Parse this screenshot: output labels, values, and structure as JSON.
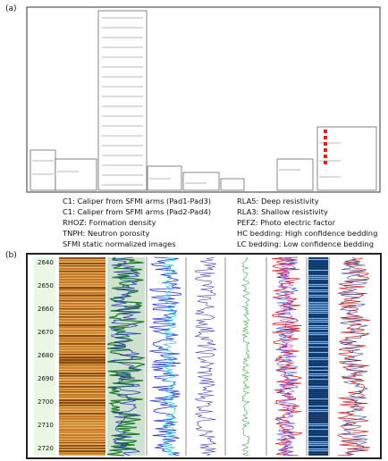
{
  "panel_a": {
    "label": "(a)",
    "legend_left": [
      "C1: Caliper from SFMI arms (Pad1-Pad3)",
      "C1: Caliper from SFMI arms (Pad2-Pad4)",
      "RHOZ: Formation density",
      "TNPH: Neutron porosity",
      "SFMI static normalized images"
    ],
    "legend_right": [
      "RLA5: Deep resistivity",
      "RLA3: Shallow resistivity",
      "PEFZ: Photo electric factor",
      "HC bedding: High confidence bedding",
      "LC bedding: Low confidence bedding"
    ]
  },
  "panel_b": {
    "label": "(b)",
    "depths": [
      "2640",
      "2650",
      "2660",
      "2670",
      "2680",
      "2690",
      "2700",
      "2710",
      "2720"
    ]
  }
}
